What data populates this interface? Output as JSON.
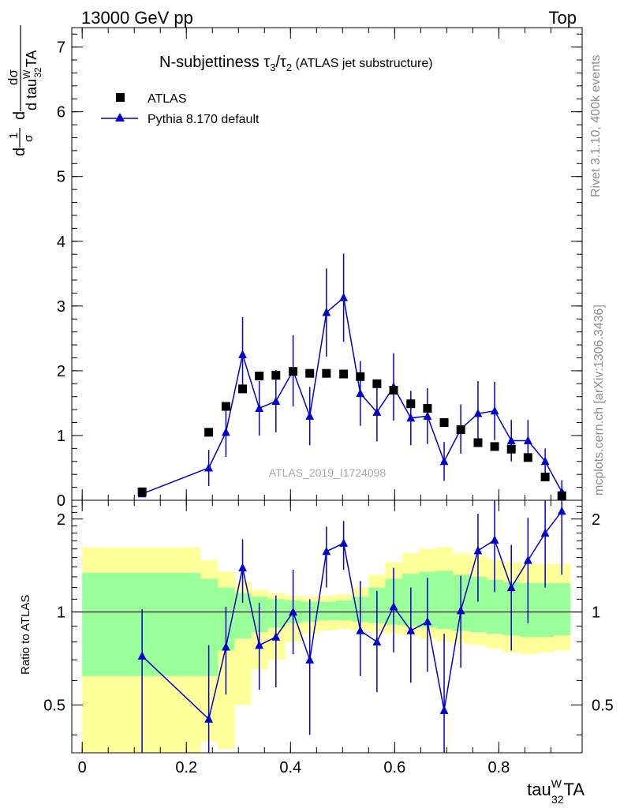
{
  "header": {
    "left": "13000 GeV pp",
    "right": "Top"
  },
  "side": {
    "rivet": "Rivet 3.1.10,  400k events",
    "mcplots": "mcplots.cern.ch [arXiv:1306.3436]"
  },
  "colors": {
    "data": "#000000",
    "mc": "#0000cc",
    "band_outer": "#ffff99",
    "band_inner": "#99ff99",
    "watermark": "#a6a6a6",
    "side_text": "#8c8c8c"
  },
  "chart_data": [
    {
      "type": "scatter",
      "panel": "main",
      "title": {
        "main": "N-subjettiness τ",
        "sub1": "3",
        "slash": "/τ",
        "sub2": "2",
        "tail": " (ATLAS jet substructure)"
      },
      "watermark": "ATLAS_2019_I1724098",
      "ylabel": {
        "d1": "d",
        "one": "1",
        "sigma": "σ",
        "d2": "d",
        "dsigma": "dσ",
        "den": "d tau",
        "den_sup": "W",
        "den_sub": "32",
        "den_tail": "TA"
      },
      "xlim": [
        -0.02,
        0.96
      ],
      "ylim": [
        0,
        7.3
      ],
      "yticks": [
        "0",
        "1",
        "2",
        "3",
        "4",
        "5",
        "6",
        "7"
      ],
      "legend_position": "top-left",
      "series": [
        {
          "name": "ATLAS",
          "marker": "square",
          "x": [
            0.115,
            0.243,
            0.276,
            0.308,
            0.34,
            0.372,
            0.405,
            0.437,
            0.469,
            0.502,
            0.534,
            0.566,
            0.598,
            0.631,
            0.663,
            0.695,
            0.727,
            0.76,
            0.792,
            0.824,
            0.856,
            0.889,
            0.921
          ],
          "y": [
            0.13,
            1.05,
            1.45,
            1.72,
            1.92,
            1.93,
            1.99,
            1.96,
            1.96,
            1.95,
            1.91,
            1.8,
            1.7,
            1.49,
            1.42,
            1.2,
            1.09,
            0.89,
            0.83,
            0.79,
            0.66,
            0.36,
            0.07
          ]
        },
        {
          "name": "Pythia 8.170 default",
          "marker": "triangle",
          "x": [
            0.115,
            0.243,
            0.276,
            0.308,
            0.34,
            0.372,
            0.405,
            0.437,
            0.469,
            0.502,
            0.534,
            0.566,
            0.598,
            0.631,
            0.663,
            0.695,
            0.727,
            0.76,
            0.792,
            0.824,
            0.856,
            0.889,
            0.921
          ],
          "y": [
            0.1,
            0.5,
            1.05,
            2.25,
            1.42,
            1.53,
            2.0,
            1.3,
            2.9,
            3.13,
            1.65,
            1.36,
            1.75,
            1.27,
            1.3,
            0.6,
            1.1,
            1.34,
            1.38,
            0.92,
            0.92,
            0.6,
            0.13
          ],
          "err": [
            0.05,
            0.28,
            0.38,
            0.58,
            0.42,
            0.48,
            0.55,
            0.45,
            0.68,
            0.68,
            0.5,
            0.45,
            0.52,
            0.42,
            0.43,
            0.3,
            0.38,
            0.5,
            0.45,
            0.32,
            0.32,
            0.2,
            0.18
          ]
        }
      ]
    },
    {
      "type": "scatter",
      "panel": "ratio",
      "ylabel": "Ratio to ATLAS",
      "xlabel": {
        "base": "tau",
        "sup": "W",
        "sub": "32",
        "tail": "TA"
      },
      "xlim": [
        -0.02,
        0.96
      ],
      "ylim": [
        0.35,
        2.3
      ],
      "log_y": true,
      "yticks": [
        "0.5",
        "1",
        "2"
      ],
      "xticks": [
        "0",
        "0.2",
        "0.4",
        "0.6",
        "0.8"
      ],
      "reference": 1,
      "bands": {
        "edges": [
          0.0,
          0.227,
          0.26,
          0.292,
          0.324,
          0.356,
          0.389,
          0.421,
          0.453,
          0.486,
          0.518,
          0.55,
          0.582,
          0.615,
          0.647,
          0.679,
          0.711,
          0.744,
          0.776,
          0.808,
          0.84,
          0.873,
          0.905,
          0.937
        ],
        "outer_lo": [
          0.34,
          0.38,
          0.36,
          0.5,
          0.65,
          0.7,
          0.8,
          0.85,
          0.87,
          0.88,
          0.87,
          0.86,
          0.85,
          0.84,
          0.82,
          0.8,
          0.79,
          0.78,
          0.76,
          0.74,
          0.73,
          0.74,
          0.75
        ],
        "outer_hi": [
          1.62,
          1.47,
          1.35,
          1.25,
          1.18,
          1.15,
          1.13,
          1.12,
          1.13,
          1.14,
          1.2,
          1.32,
          1.45,
          1.55,
          1.6,
          1.62,
          1.55,
          1.52,
          1.48,
          1.45,
          1.43,
          1.43,
          1.43
        ],
        "inner_lo": [
          0.62,
          0.62,
          0.75,
          0.82,
          0.86,
          0.89,
          0.92,
          0.93,
          0.94,
          0.94,
          0.93,
          0.92,
          0.91,
          0.9,
          0.89,
          0.88,
          0.87,
          0.86,
          0.85,
          0.84,
          0.83,
          0.83,
          0.84
        ],
        "inner_hi": [
          1.34,
          1.28,
          1.2,
          1.15,
          1.12,
          1.1,
          1.09,
          1.08,
          1.08,
          1.09,
          1.12,
          1.2,
          1.28,
          1.33,
          1.35,
          1.36,
          1.32,
          1.3,
          1.27,
          1.25,
          1.24,
          1.24,
          1.24
        ]
      },
      "series": [
        {
          "name": "Pythia 8.170 default",
          "x": [
            0.115,
            0.243,
            0.276,
            0.308,
            0.34,
            0.372,
            0.405,
            0.437,
            0.469,
            0.502,
            0.534,
            0.566,
            0.598,
            0.631,
            0.663,
            0.695,
            0.727,
            0.76,
            0.792,
            0.824,
            0.856,
            0.889,
            0.921
          ],
          "y": [
            0.72,
            0.45,
            0.77,
            1.39,
            0.78,
            0.83,
            1.0,
            0.7,
            1.57,
            1.67,
            0.87,
            0.8,
            1.04,
            0.87,
            0.93,
            0.48,
            1.01,
            1.58,
            1.71,
            1.2,
            1.47,
            1.8,
            2.12
          ],
          "err_lo": [
            0.37,
            0.13,
            0.23,
            0.32,
            0.22,
            0.26,
            0.27,
            0.3,
            0.37,
            0.3,
            0.25,
            0.25,
            0.3,
            0.28,
            0.29,
            0.23,
            0.35,
            0.5,
            0.55,
            0.45,
            0.55,
            0.6,
            0.8
          ],
          "err_hi": [
            0.3,
            0.33,
            0.27,
            0.33,
            0.29,
            0.3,
            0.37,
            0.4,
            0.32,
            0.3,
            0.39,
            0.37,
            0.35,
            0.33,
            0.36,
            0.37,
            0.3,
            0.5,
            0.6,
            0.45,
            0.55,
            0.6,
            0.6
          ]
        }
      ]
    }
  ]
}
